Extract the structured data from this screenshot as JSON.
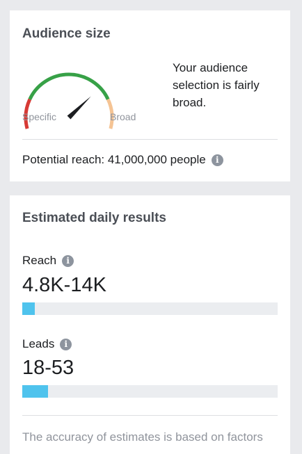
{
  "audience": {
    "title": "Audience size",
    "gauge": {
      "left_label": "Specific",
      "right_label": "Broad",
      "level": 0.72,
      "colors": {
        "specific": "#d73a35",
        "middle": "#37a147",
        "broad": "#f5c494",
        "needle": "#1c1e21"
      }
    },
    "description": "Your audience selection is fairly broad.",
    "potential_reach": "Potential reach: 41,000,000 people",
    "info_icon": "info-icon"
  },
  "results": {
    "title": "Estimated daily results",
    "reach": {
      "label": "Reach",
      "value": "4.8K-14K",
      "fill_percent": 5
    },
    "leads": {
      "label": "Leads",
      "value": "18-53",
      "fill_percent": 10
    },
    "bar_color": "#4fc3ed",
    "accuracy_note": "The accuracy of estimates is based on factors"
  }
}
